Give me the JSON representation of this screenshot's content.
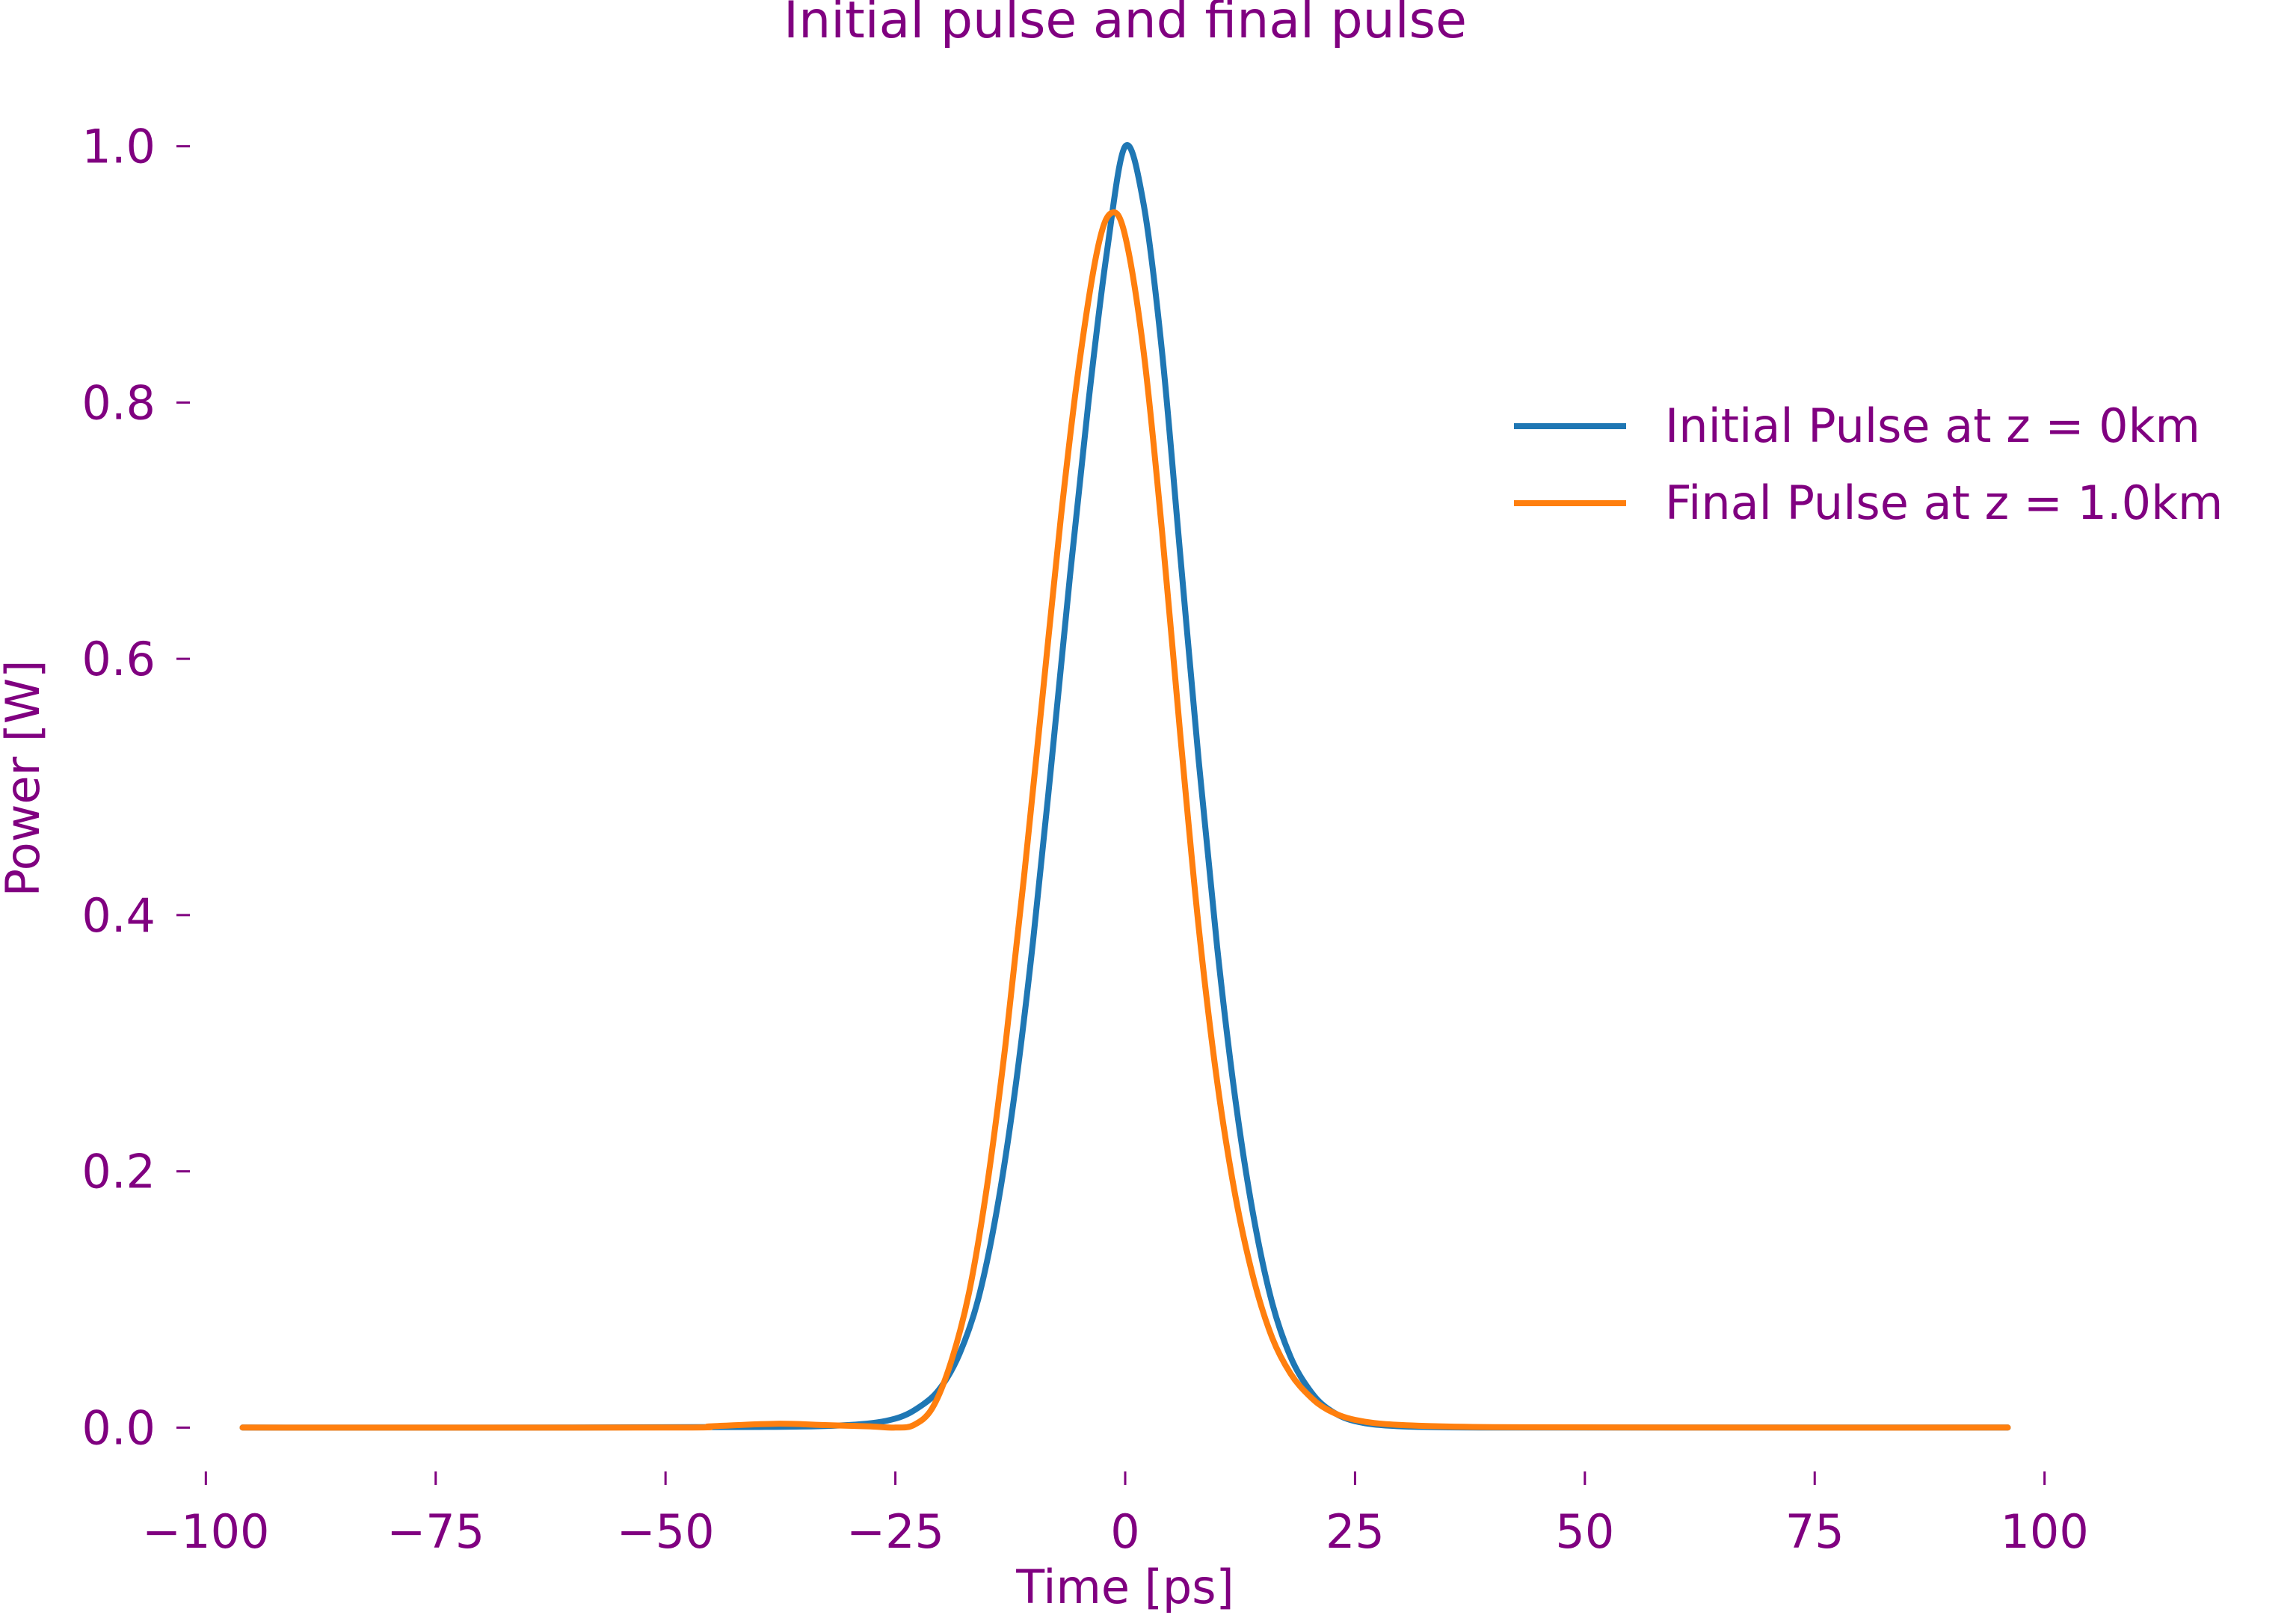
{
  "colors": {
    "text": "#800080",
    "initial": "#1f77b4",
    "final": "#ff7f0e"
  },
  "chart_data": {
    "type": "line",
    "title": "Initial pulse and final pulse",
    "xlabel": "Time [ps]",
    "ylabel": "Power [W]",
    "xlim": [
      -104.5,
      104.5
    ],
    "ylim": [
      -0.05,
      1.05
    ],
    "xticks": [
      -100,
      -75,
      -50,
      -25,
      0,
      25,
      50,
      75,
      100
    ],
    "xtick_labels": [
      "−100",
      "−75",
      "−50",
      "−25",
      "0",
      "25",
      "50",
      "75",
      "100"
    ],
    "yticks": [
      0.0,
      0.2,
      0.4,
      0.6,
      0.8,
      1.0
    ],
    "ytick_labels": [
      "0.0",
      "0.2",
      "0.4",
      "0.6",
      "0.8",
      "1.0"
    ],
    "grid": false,
    "legend_position": "upper-right",
    "series": [
      {
        "name": "Initial Pulse at z = 0km",
        "color": "#1f77b4",
        "x": [
          -96,
          -60,
          -40,
          -30,
          -25,
          -22,
          -20,
          -18,
          -16,
          -14,
          -12,
          -10,
          -8,
          -6,
          -4,
          -2,
          0,
          2,
          4,
          6,
          8,
          10,
          12,
          14,
          16,
          18,
          20,
          22,
          25,
          30,
          40,
          60,
          96
        ],
        "y": [
          0,
          0,
          0.0005,
          0.002,
          0.007,
          0.018,
          0.032,
          0.058,
          0.1,
          0.168,
          0.262,
          0.381,
          0.52,
          0.665,
          0.8,
          0.917,
          1.0,
          0.955,
          0.84,
          0.68,
          0.52,
          0.375,
          0.255,
          0.163,
          0.097,
          0.055,
          0.03,
          0.015,
          0.005,
          0.001,
          0,
          0,
          0
        ]
      },
      {
        "name": "Final Pulse at z = 1.0km",
        "color": "#ff7f0e",
        "x": [
          -96,
          -50,
          -45,
          -38,
          -33,
          -28,
          -25,
          -23,
          -21,
          -19,
          -17,
          -15,
          -13,
          -11,
          -9,
          -7,
          -5,
          -3,
          -1.5,
          0,
          2,
          4,
          6,
          8,
          10,
          12,
          14,
          16,
          18,
          20,
          22,
          25,
          30,
          40,
          60,
          96
        ],
        "y": [
          0,
          0,
          0.001,
          0.003,
          0.002,
          0.001,
          0.0,
          0.002,
          0.015,
          0.05,
          0.105,
          0.19,
          0.3,
          0.43,
          0.57,
          0.71,
          0.83,
          0.92,
          0.948,
          0.93,
          0.84,
          0.7,
          0.54,
          0.39,
          0.27,
          0.18,
          0.115,
          0.07,
          0.042,
          0.025,
          0.014,
          0.006,
          0.002,
          0.0003,
          0,
          0
        ]
      }
    ]
  }
}
